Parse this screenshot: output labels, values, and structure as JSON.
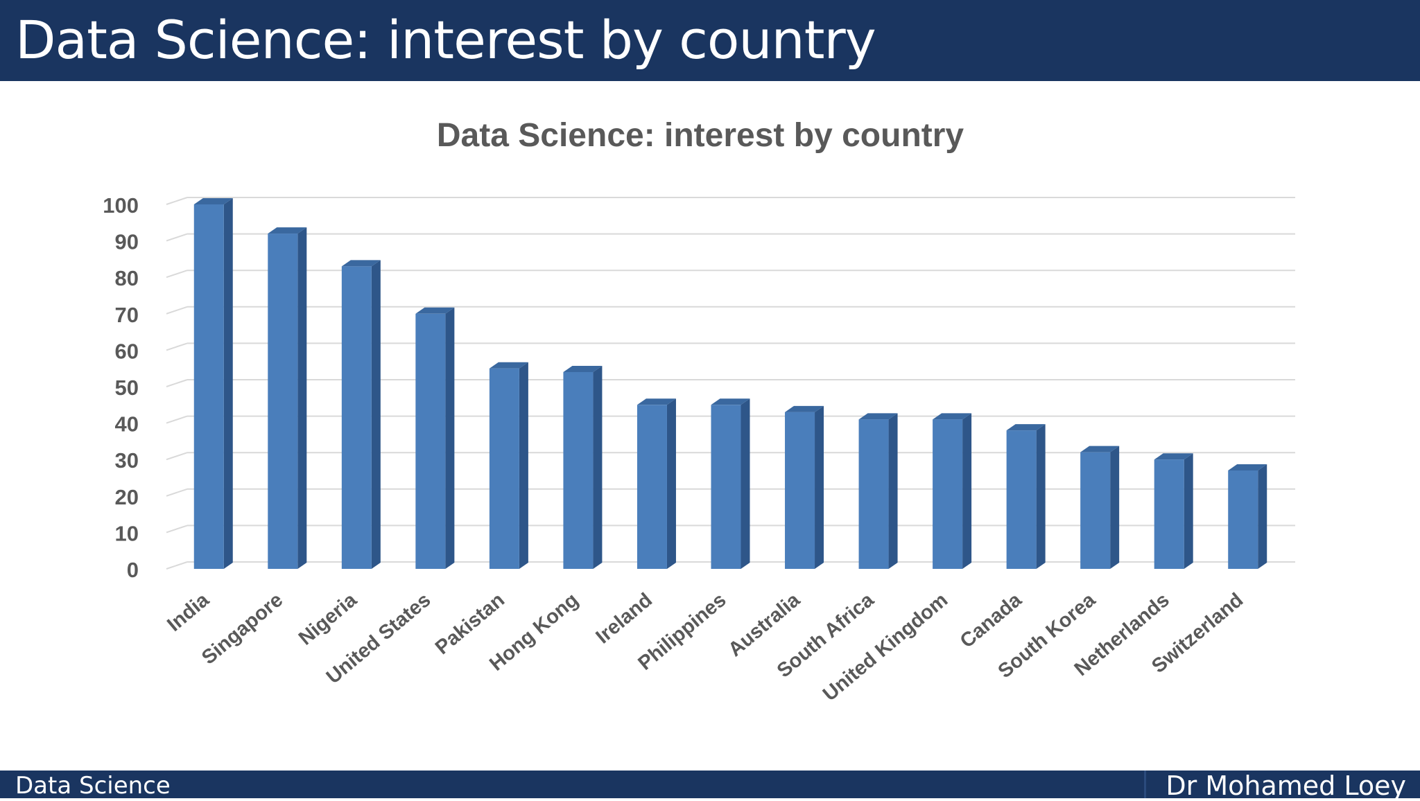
{
  "slide": {
    "title": "Data Science: interest by country",
    "footer_left": "Data Science",
    "footer_right": "Dr Mohamed Loey"
  },
  "colors": {
    "header_bg": "#1a3560",
    "bar_front": "#4a7ebb",
    "bar_side": "#2e5689",
    "bar_top": "#3a689f",
    "axis_text": "#595959"
  },
  "chart_data": {
    "type": "bar",
    "style": "3d-column",
    "title": "Data Science: interest by country",
    "categories": [
      "India",
      "Singapore",
      "Nigeria",
      "United States",
      "Pakistan",
      "Hong Kong",
      "Ireland",
      "Philippines",
      "Australia",
      "South Africa",
      "United Kingdom",
      "Canada",
      "South Korea",
      "Netherlands",
      "Switzerland"
    ],
    "values": [
      100,
      92,
      83,
      70,
      55,
      54,
      45,
      45,
      43,
      41,
      41,
      38,
      32,
      30,
      27
    ],
    "ylim": [
      0,
      100
    ],
    "yticks": [
      "0",
      "10",
      "20",
      "30",
      "40",
      "50",
      "60",
      "70",
      "80",
      "90",
      "100"
    ],
    "grid": true,
    "legend": "none"
  }
}
